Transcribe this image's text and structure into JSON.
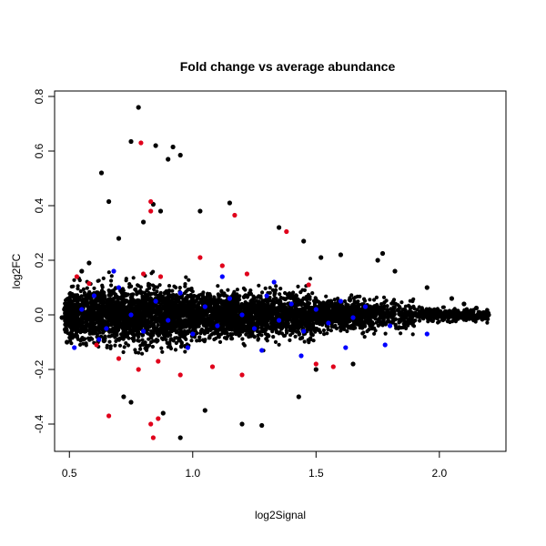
{
  "chart_data": {
    "type": "scatter",
    "title": "Fold change vs average abundance",
    "xlabel": "log2Signal",
    "ylabel": "log2FC",
    "xlim": [
      0.44,
      2.27
    ],
    "ylim": [
      -0.5,
      0.82
    ],
    "xticks": [
      0.5,
      1.0,
      1.5,
      2.0
    ],
    "xtick_labels": [
      "0.5",
      "1.0",
      "1.5",
      "2.0"
    ],
    "yticks": [
      -0.4,
      -0.2,
      0.0,
      0.2,
      0.4,
      0.6,
      0.8
    ],
    "ytick_labels": [
      "-0.4",
      "-0.2",
      "0.0",
      "0.2",
      "0.4",
      "0.6",
      "0.8"
    ],
    "grid": false,
    "legend": "none",
    "colors": {
      "black": "#000000",
      "red": "#e0001b",
      "blue": "#0000ff"
    },
    "series": [
      {
        "color": "black",
        "points": [
          [
            0.78,
            0.76
          ],
          [
            0.75,
            0.635
          ],
          [
            0.85,
            0.62
          ],
          [
            0.92,
            0.615
          ],
          [
            0.95,
            0.585
          ],
          [
            0.9,
            0.57
          ],
          [
            0.63,
            0.52
          ],
          [
            0.66,
            0.415
          ],
          [
            0.84,
            0.405
          ],
          [
            1.15,
            0.41
          ],
          [
            0.87,
            0.38
          ],
          [
            1.03,
            0.38
          ],
          [
            1.35,
            0.32
          ],
          [
            1.45,
            0.27
          ],
          [
            1.6,
            0.22
          ],
          [
            1.77,
            0.225
          ],
          [
            1.75,
            0.2
          ],
          [
            1.52,
            0.21
          ],
          [
            1.82,
            0.16
          ],
          [
            1.95,
            0.1
          ],
          [
            2.05,
            0.06
          ],
          [
            2.1,
            0.04
          ],
          [
            2.15,
            0.025
          ],
          [
            2.2,
            0.0
          ],
          [
            0.72,
            -0.3
          ],
          [
            0.75,
            -0.32
          ],
          [
            0.95,
            -0.45
          ],
          [
            1.2,
            -0.4
          ],
          [
            1.28,
            -0.405
          ],
          [
            1.43,
            -0.3
          ],
          [
            0.88,
            -0.36
          ],
          [
            1.05,
            -0.35
          ],
          [
            1.5,
            -0.2
          ],
          [
            1.65,
            -0.18
          ],
          [
            0.49,
            -0.1
          ],
          [
            0.5,
            0.05
          ],
          [
            0.47,
            -0.01
          ],
          [
            0.48,
            0.02
          ],
          [
            0.55,
            0.16
          ],
          [
            0.58,
            0.19
          ],
          [
            0.7,
            0.28
          ],
          [
            0.8,
            0.34
          ]
        ]
      },
      {
        "color": "red",
        "points": [
          [
            0.79,
            0.63
          ],
          [
            0.83,
            0.415
          ],
          [
            0.83,
            0.38
          ],
          [
            1.17,
            0.365
          ],
          [
            1.38,
            0.305
          ],
          [
            0.53,
            0.14
          ],
          [
            0.58,
            0.115
          ],
          [
            0.8,
            0.15
          ],
          [
            0.87,
            0.14
          ],
          [
            1.03,
            0.21
          ],
          [
            1.12,
            0.18
          ],
          [
            1.22,
            0.15
          ],
          [
            1.47,
            0.11
          ],
          [
            0.61,
            -0.11
          ],
          [
            0.7,
            -0.16
          ],
          [
            0.78,
            -0.2
          ],
          [
            0.86,
            -0.17
          ],
          [
            0.95,
            -0.22
          ],
          [
            1.08,
            -0.19
          ],
          [
            1.2,
            -0.22
          ],
          [
            1.5,
            -0.18
          ],
          [
            1.57,
            -0.19
          ],
          [
            0.66,
            -0.37
          ],
          [
            0.83,
            -0.4
          ],
          [
            0.86,
            -0.38
          ],
          [
            0.84,
            -0.45
          ]
        ]
      },
      {
        "color": "blue",
        "points": [
          [
            0.55,
            0.02
          ],
          [
            0.6,
            0.07
          ],
          [
            0.65,
            -0.05
          ],
          [
            0.7,
            0.1
          ],
          [
            0.75,
            0.0
          ],
          [
            0.8,
            -0.06
          ],
          [
            0.85,
            0.05
          ],
          [
            0.9,
            -0.02
          ],
          [
            0.95,
            0.08
          ],
          [
            1.0,
            -0.07
          ],
          [
            1.05,
            0.03
          ],
          [
            1.1,
            -0.04
          ],
          [
            1.15,
            0.06
          ],
          [
            1.2,
            0.0
          ],
          [
            1.25,
            -0.05
          ],
          [
            1.3,
            0.07
          ],
          [
            1.35,
            -0.02
          ],
          [
            1.4,
            0.04
          ],
          [
            1.45,
            -0.06
          ],
          [
            1.5,
            0.02
          ],
          [
            1.55,
            -0.03
          ],
          [
            1.6,
            0.05
          ],
          [
            1.65,
            -0.01
          ],
          [
            1.7,
            0.03
          ],
          [
            1.8,
            -0.04
          ],
          [
            1.95,
            -0.07
          ],
          [
            1.78,
            -0.11
          ],
          [
            1.62,
            -0.12
          ],
          [
            1.44,
            -0.15
          ],
          [
            0.52,
            -0.12
          ],
          [
            0.68,
            0.16
          ],
          [
            0.98,
            -0.12
          ],
          [
            1.12,
            0.14
          ],
          [
            1.28,
            -0.13
          ],
          [
            1.33,
            0.12
          ],
          [
            0.62,
            -0.09
          ]
        ]
      }
    ]
  }
}
